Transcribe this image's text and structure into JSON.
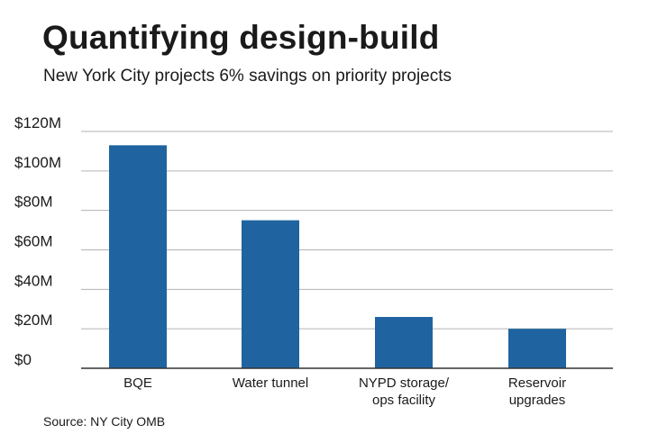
{
  "header": {
    "title": "Quantifying design-build",
    "subtitle": "New York City projects 6% savings on priority projects"
  },
  "footer": {
    "source": "Source: NY City OMB"
  },
  "colors": {
    "bar": "#1f64a0",
    "grid": "#b3b3b3",
    "axis": "#333333"
  },
  "chart_data": {
    "type": "bar",
    "title": "Quantifying design-build",
    "subtitle": "New York City projects 6% savings on priority projects",
    "xlabel": "",
    "ylabel": "",
    "categories": [
      [
        "BQE"
      ],
      [
        "Water tunnel"
      ],
      [
        "NYPD storage/",
        "ops facility"
      ],
      [
        "Reservoir",
        "upgrades"
      ]
    ],
    "values": [
      113,
      75,
      26,
      20
    ],
    "unit": "$M",
    "ylim": [
      0,
      120
    ],
    "yticks": [
      0,
      20,
      40,
      60,
      80,
      100,
      120
    ],
    "ytick_labels": [
      "$0",
      "$20M",
      "$40M",
      "$60M",
      "$80M",
      "$100M",
      "$120M"
    ],
    "grid": true,
    "legend": "none"
  }
}
